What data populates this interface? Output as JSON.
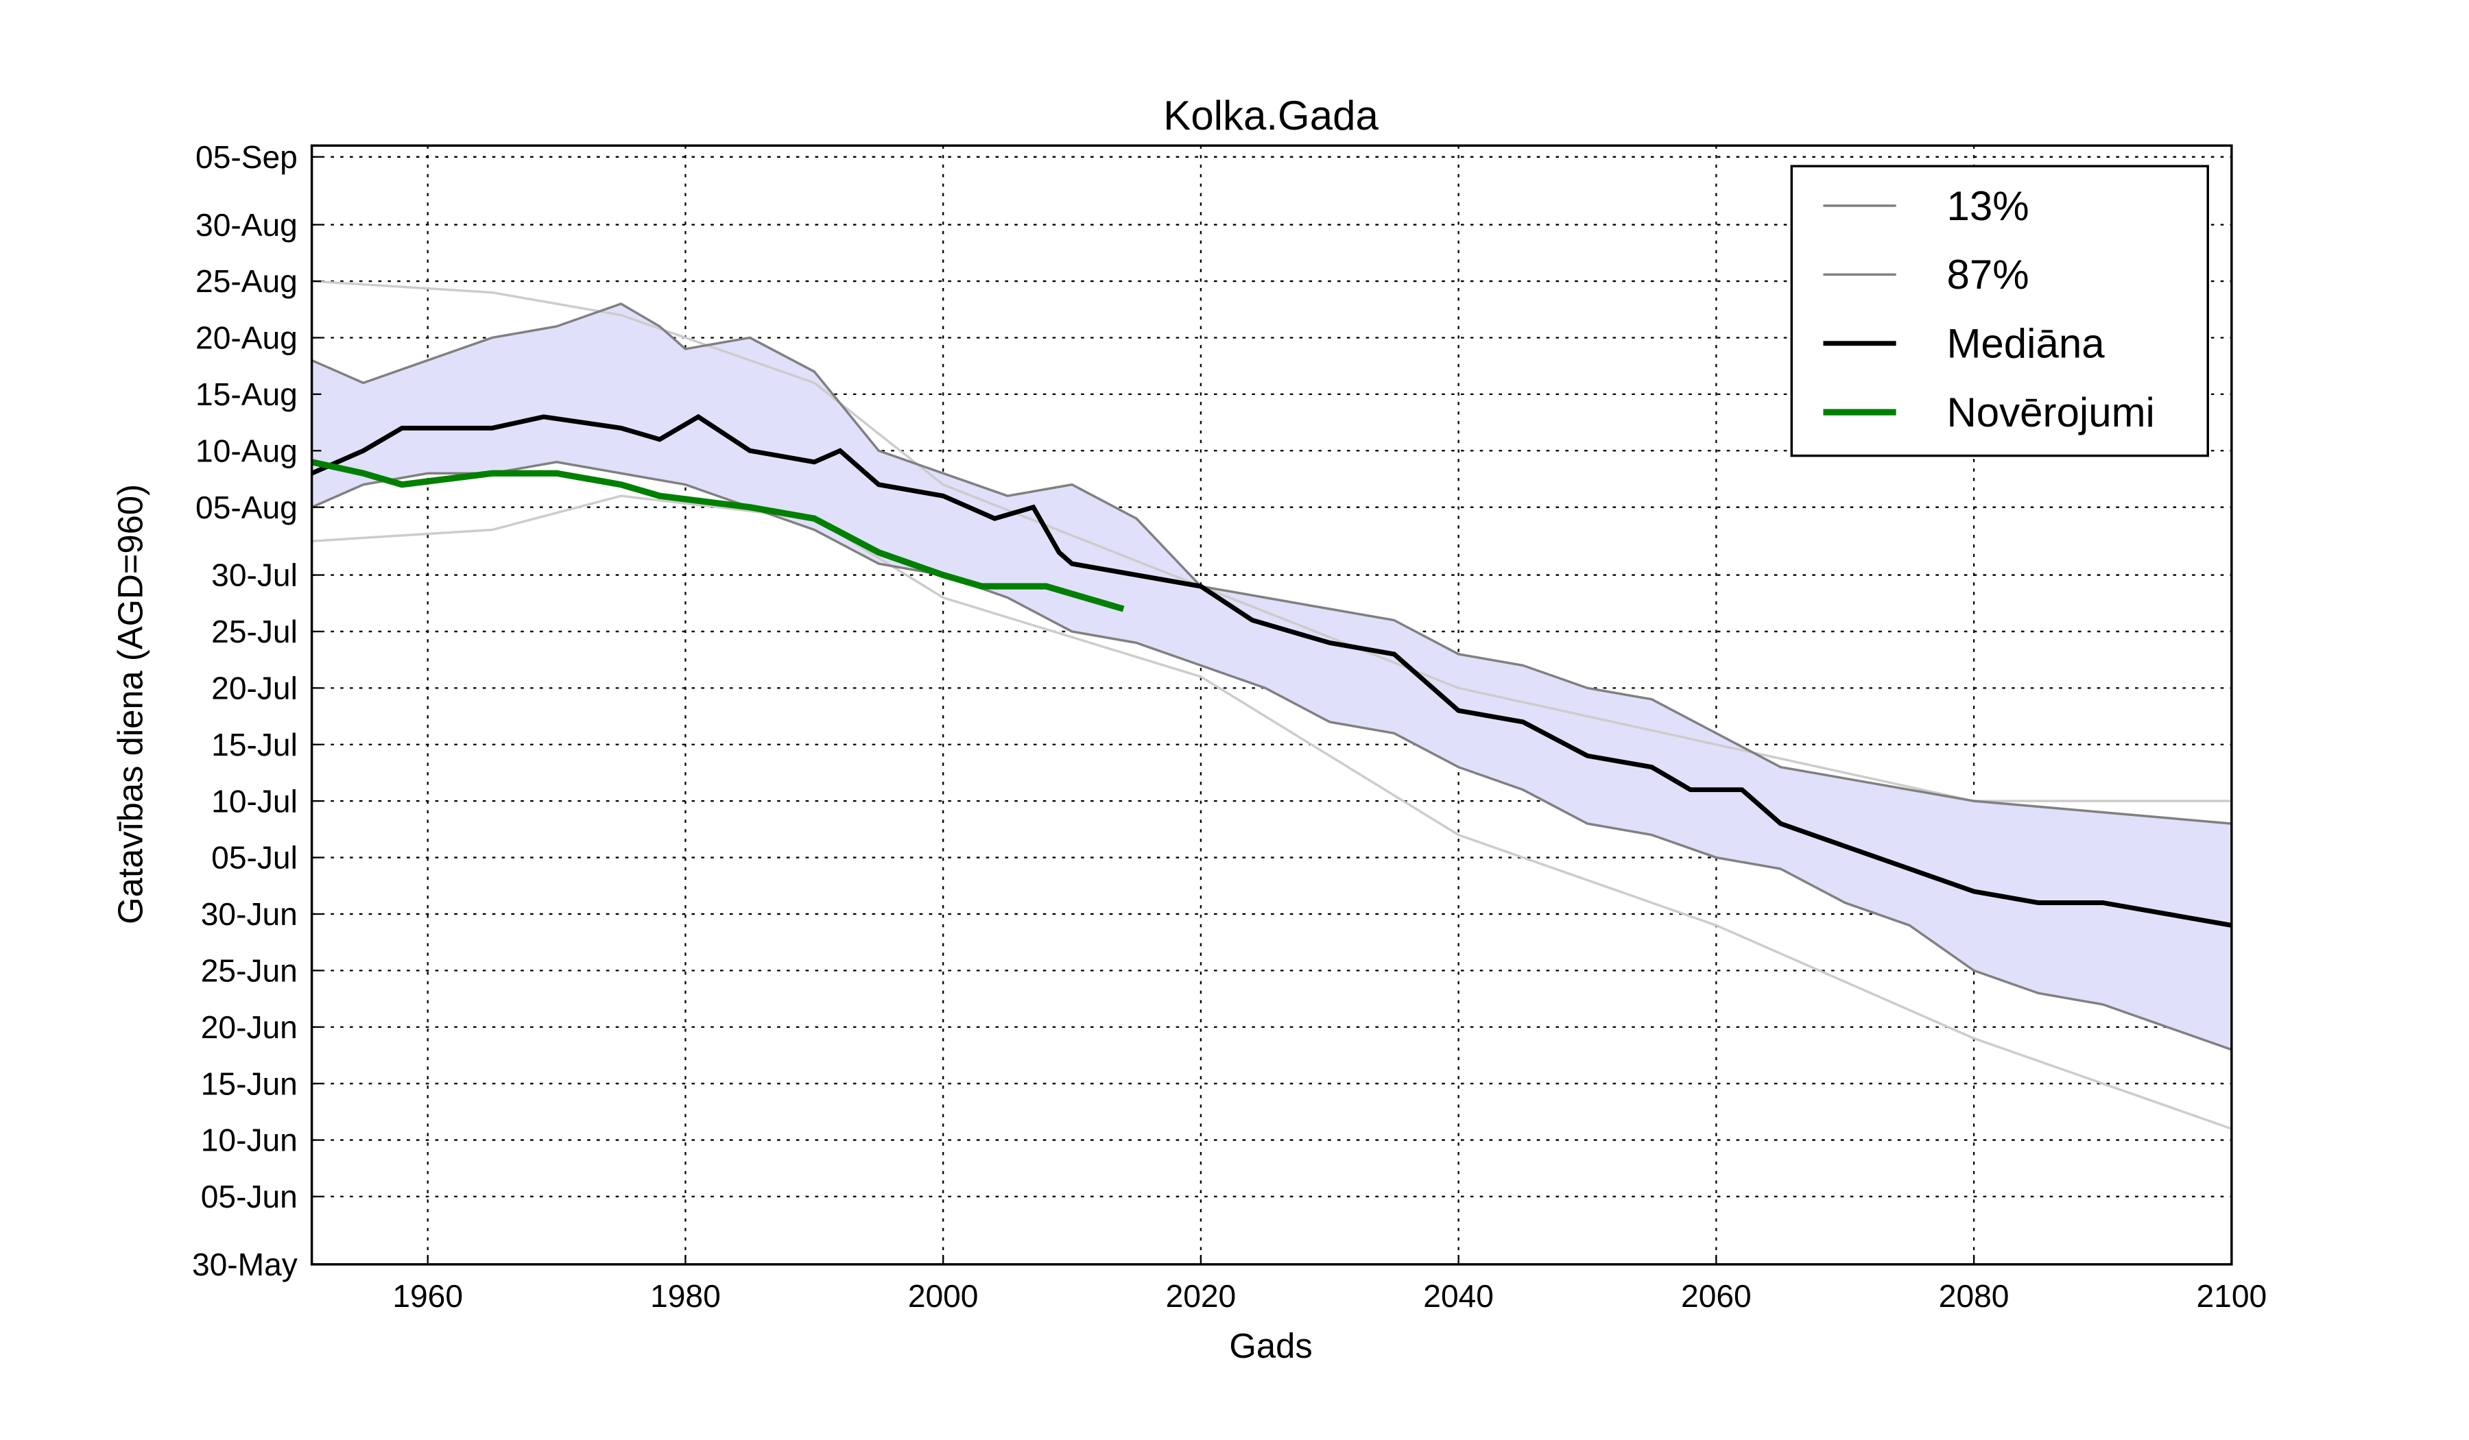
{
  "chart_data": {
    "type": "line",
    "title": "Kolka.Gada",
    "xlabel": "Gads",
    "ylabel": "Gatavības diena (AGD=960)",
    "xlim": [
      1951,
      2100
    ],
    "ylim": [
      "30-May",
      "06-Sep"
    ],
    "grid": true,
    "legend_placement": "top-right",
    "x_ticks": [
      "1960",
      "1980",
      "2000",
      "2020",
      "2040",
      "2060",
      "2080",
      "2100"
    ],
    "y_ticks": [
      "05-Sep",
      "30-Aug",
      "25-Aug",
      "20-Aug",
      "15-Aug",
      "10-Aug",
      "05-Aug",
      "30-Jul",
      "25-Jul",
      "20-Jul",
      "15-Jul",
      "10-Jul",
      "05-Jul",
      "30-Jun",
      "25-Jun",
      "20-Jun",
      "15-Jun",
      "10-Jun",
      "05-Jun",
      "30-May"
    ],
    "colors": {
      "band_fill": "#e0e0fa",
      "band_edge": "#808080",
      "median": "#000000",
      "observed": "#008000",
      "ensemble": "#cccccc"
    },
    "series": [
      {
        "name": "13%",
        "x": [
          1951,
          1955,
          1960,
          1965,
          1970,
          1975,
          1980,
          1985,
          1990,
          1995,
          2000,
          2005,
          2010,
          2015,
          2020,
          2025,
          2030,
          2035,
          2040,
          2045,
          2050,
          2055,
          2060,
          2065,
          2070,
          2075,
          2080,
          2085,
          2090,
          2095,
          2100
        ],
        "y": [
          "05-Aug",
          "07-Aug",
          "08-Aug",
          "08-Aug",
          "09-Aug",
          "08-Aug",
          "07-Aug",
          "05-Aug",
          "03-Aug",
          "31-Jul",
          "30-Jul",
          "28-Jul",
          "25-Jul",
          "24-Jul",
          "22-Jul",
          "20-Jul",
          "17-Jul",
          "16-Jul",
          "13-Jul",
          "11-Jul",
          "08-Jul",
          "07-Jul",
          "05-Jul",
          "04-Jul",
          "01-Jul",
          "29-Jun",
          "25-Jun",
          "23-Jun",
          "22-Jun",
          "20-Jun",
          "18-Jun"
        ]
      },
      {
        "name": "87%",
        "x": [
          1951,
          1955,
          1960,
          1965,
          1970,
          1975,
          1978,
          1980,
          1985,
          1990,
          1995,
          2000,
          2005,
          2010,
          2015,
          2020,
          2025,
          2030,
          2035,
          2040,
          2045,
          2050,
          2055,
          2060,
          2065,
          2070,
          2080,
          2090,
          2100
        ],
        "y": [
          "18-Aug",
          "16-Aug",
          "18-Aug",
          "20-Aug",
          "21-Aug",
          "23-Aug",
          "21-Aug",
          "19-Aug",
          "20-Aug",
          "17-Aug",
          "10-Aug",
          "08-Aug",
          "06-Aug",
          "07-Aug",
          "04-Aug",
          "29-Jul",
          "28-Jul",
          "27-Jul",
          "26-Jul",
          "23-Jul",
          "22-Jul",
          "20-Jul",
          "19-Jul",
          "16-Jul",
          "13-Jul",
          "12-Jul",
          "10-Jul",
          "09-Jul",
          "08-Jul"
        ]
      },
      {
        "name": "Mediāna",
        "x": [
          1951,
          1955,
          1958,
          1965,
          1969,
          1975,
          1978,
          1981,
          1985,
          1990,
          1992,
          1995,
          2000,
          2004,
          2007,
          2009,
          2010,
          2015,
          2020,
          2024,
          2030,
          2035,
          2040,
          2045,
          2050,
          2055,
          2058,
          2062,
          2065,
          2070,
          2075,
          2080,
          2085,
          2090,
          2095,
          2100
        ],
        "y": [
          "08-Aug",
          "10-Aug",
          "12-Aug",
          "12-Aug",
          "13-Aug",
          "12-Aug",
          "11-Aug",
          "13-Aug",
          "10-Aug",
          "09-Aug",
          "10-Aug",
          "07-Aug",
          "06-Aug",
          "04-Aug",
          "05-Aug",
          "01-Aug",
          "31-Jul",
          "30-Jul",
          "29-Jul",
          "26-Jul",
          "24-Jul",
          "23-Jul",
          "18-Jul",
          "17-Jul",
          "14-Jul",
          "13-Jul",
          "11-Jul",
          "11-Jul",
          "08-Jul",
          "06-Jul",
          "04-Jul",
          "02-Jul",
          "01-Jul",
          "01-Jul",
          "30-Jun",
          "29-Jun"
        ]
      },
      {
        "name": "Novērojumi",
        "x": [
          1951,
          1955,
          1958,
          1965,
          1970,
          1975,
          1978,
          1985,
          1990,
          1995,
          2000,
          2003,
          2008,
          2011,
          2014
        ],
        "y": [
          "09-Aug",
          "08-Aug",
          "07-Aug",
          "08-Aug",
          "08-Aug",
          "07-Aug",
          "06-Aug",
          "05-Aug",
          "04-Aug",
          "01-Aug",
          "30-Jul",
          "29-Jul",
          "29-Jul",
          "28-Jul",
          "27-Jul"
        ]
      },
      {
        "x": [
          1951,
          1965,
          1975,
          1990,
          2000,
          2020,
          2040,
          2060,
          2080,
          2100
        ],
        "y": [
          "25-Aug",
          "24-Aug",
          "22-Aug",
          "16-Aug",
          "07-Aug",
          "29-Jul",
          "20-Jul",
          "15-Jul",
          "10-Jul",
          "10-Jul"
        ]
      },
      {
        "x": [
          1951,
          1965,
          1975,
          1990,
          2000,
          2020,
          2040,
          2060,
          2080,
          2100
        ],
        "y": [
          "02-Aug",
          "03-Aug",
          "06-Aug",
          "04-Aug",
          "28-Jul",
          "21-Jul",
          "07-Jul",
          "29-Jun",
          "19-Jun",
          "11-Jun"
        ]
      }
    ]
  }
}
